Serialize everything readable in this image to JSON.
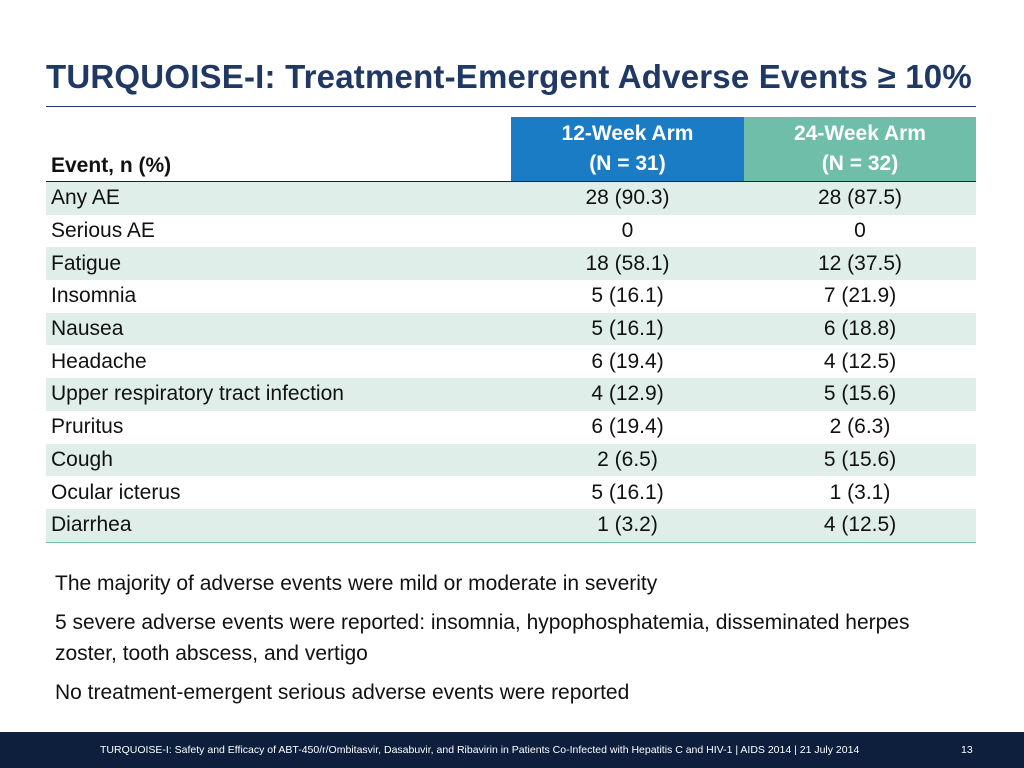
{
  "slide": {
    "title": "TURQUOISE-I: Treatment-Emergent Adverse Events ≥ 10%"
  },
  "table": {
    "header": {
      "event_label": "Event, n (%)",
      "arm1_line1": "12-Week Arm",
      "arm1_line2": "(N = 31)",
      "arm2_line1": "24-Week Arm",
      "arm2_line2": "(N = 32)"
    },
    "rows": [
      {
        "event": "Any AE",
        "arm1": "28 (90.3)",
        "arm2": "28 (87.5)"
      },
      {
        "event": "Serious AE",
        "arm1": "0",
        "arm2": "0"
      },
      {
        "event": "Fatigue",
        "arm1": "18 (58.1)",
        "arm2": "12 (37.5)"
      },
      {
        "event": "Insomnia",
        "arm1": "5 (16.1)",
        "arm2": "7 (21.9)"
      },
      {
        "event": "Nausea",
        "arm1": "5 (16.1)",
        "arm2": "6 (18.8)"
      },
      {
        "event": "Headache",
        "arm1": "6 (19.4)",
        "arm2": "4 (12.5)"
      },
      {
        "event": "Upper respiratory tract infection",
        "arm1": "4 (12.9)",
        "arm2": "5 (15.6)"
      },
      {
        "event": "Pruritus",
        "arm1": "6 (19.4)",
        "arm2": "2 (6.3)"
      },
      {
        "event": "Cough",
        "arm1": "2 (6.5)",
        "arm2": "5 (15.6)"
      },
      {
        "event": "Ocular icterus",
        "arm1": "5 (16.1)",
        "arm2": "1 (3.1)"
      },
      {
        "event": "Diarrhea",
        "arm1": "1 (3.2)",
        "arm2": "4 (12.5)"
      }
    ]
  },
  "notes": [
    "The majority of adverse events were mild or moderate in severity",
    "5 severe adverse events were reported: insomnia, hypophosphatemia, disseminated herpes zoster, tooth abscess, and vertigo",
    "No treatment-emergent serious adverse events were reported"
  ],
  "footer": {
    "citation": "TURQUOISE-I: Safety and Efficacy of ABT-450/r/Ombitasvir, Dasabuvir, and Ribavirin in Patients Co-Infected with Hepatitis C and HIV-1 | AIDS 2014 | 21 July 2014",
    "page_number": "13"
  },
  "colors": {
    "title": "#1f3864",
    "arm1_header": "#1a7cc4",
    "arm2_header": "#6fbea9",
    "row_stripe": "#dfeee9",
    "footer_bg": "#0d1f3c"
  }
}
